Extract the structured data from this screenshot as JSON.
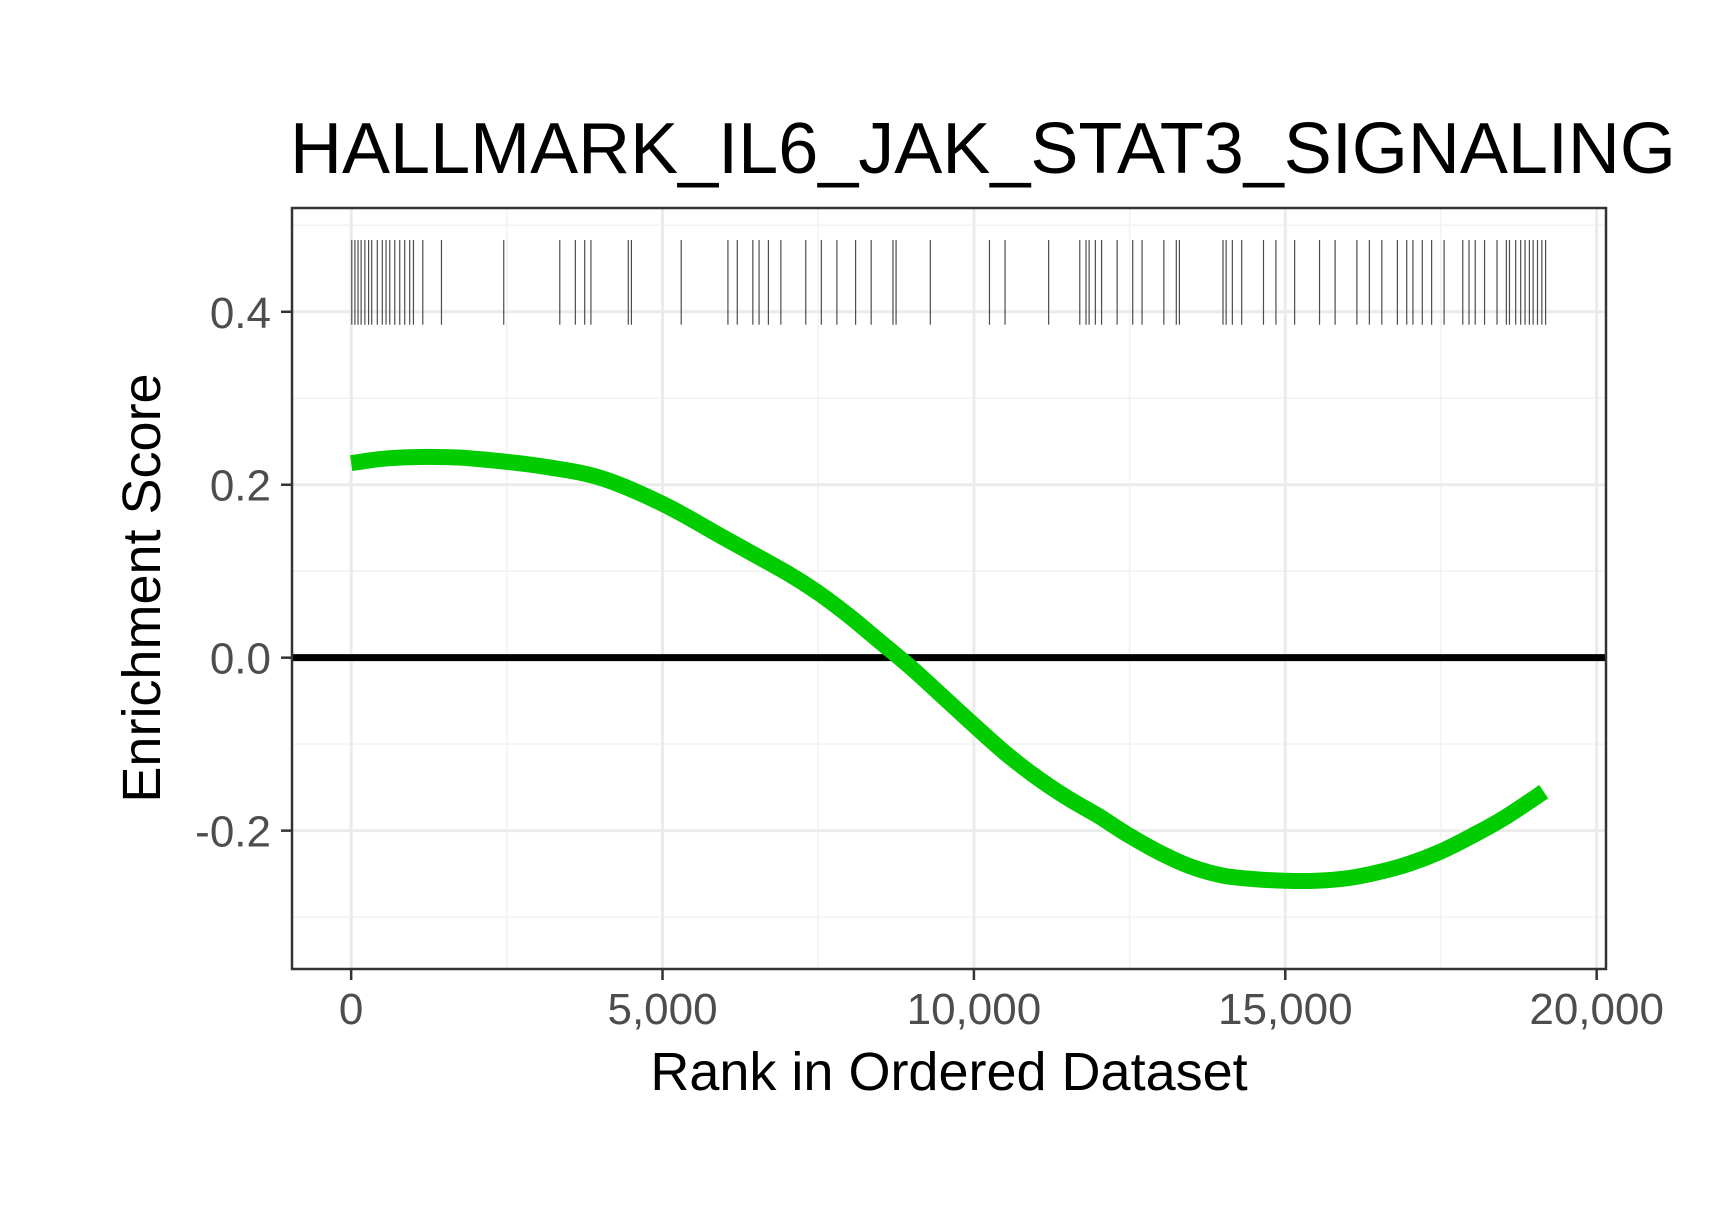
{
  "chart_data": {
    "type": "line",
    "title": "HALLMARK_IL6_JAK_STAT3_SIGNALING",
    "xlabel": "Rank in Ordered Dataset",
    "ylabel": "Enrichment Score",
    "xlim": [
      -950,
      20150
    ],
    "ylim": [
      -0.36,
      0.52
    ],
    "xticks": [
      0,
      5000,
      10000,
      15000,
      20000
    ],
    "xtick_labels": [
      "0",
      "5,000",
      "10,000",
      "15,000",
      "20,000"
    ],
    "yticks": [
      -0.2,
      0.0,
      0.2,
      0.4
    ],
    "ytick_labels": [
      "-0.2",
      "0.0",
      "0.2",
      "0.4"
    ],
    "grid": true,
    "reference_line_y": 0,
    "series": [
      {
        "color": "#00cc00",
        "x": [
          0,
          500,
          1000,
          1500,
          2000,
          3000,
          4000,
          5000,
          6000,
          7000,
          7500,
          8000,
          8500,
          9000,
          9500,
          10000,
          10500,
          11000,
          11500,
          12000,
          12500,
          13000,
          13500,
          14000,
          14500,
          15000,
          15500,
          16000,
          16500,
          17000,
          17500,
          18000,
          18500,
          19150
        ],
        "y": [
          0.225,
          0.23,
          0.232,
          0.232,
          0.23,
          0.222,
          0.208,
          0.178,
          0.138,
          0.098,
          0.075,
          0.048,
          0.018,
          -0.012,
          -0.045,
          -0.078,
          -0.11,
          -0.138,
          -0.162,
          -0.183,
          -0.206,
          -0.226,
          -0.242,
          -0.252,
          -0.256,
          -0.258,
          -0.258,
          -0.255,
          -0.248,
          -0.238,
          -0.224,
          -0.206,
          -0.186,
          -0.155
        ]
      }
    ],
    "gene_hits": {
      "color": "#4d4d4d",
      "y_range": [
        0.385,
        0.483
      ],
      "positions": [
        10,
        60,
        110,
        160,
        220,
        280,
        330,
        420,
        500,
        560,
        620,
        700,
        780,
        860,
        940,
        1000,
        1150,
        1450,
        2450,
        3350,
        3600,
        3750,
        3850,
        4450,
        4500,
        5300,
        6050,
        6200,
        6450,
        6550,
        6700,
        6900,
        7300,
        7550,
        7800,
        8100,
        8350,
        8700,
        8750,
        9300,
        10250,
        10500,
        11200,
        11700,
        11800,
        11850,
        11950,
        12050,
        12300,
        12550,
        12700,
        13050,
        13250,
        13300,
        14000,
        14050,
        14150,
        14300,
        14650,
        14850,
        15150,
        15550,
        15800,
        16150,
        16350,
        16550,
        16800,
        16950,
        17050,
        17200,
        17350,
        17550,
        17850,
        17950,
        18050,
        18200,
        18400,
        18550,
        18600,
        18700,
        18780,
        18850,
        18920,
        18980,
        19050,
        19120,
        19180
      ]
    }
  }
}
